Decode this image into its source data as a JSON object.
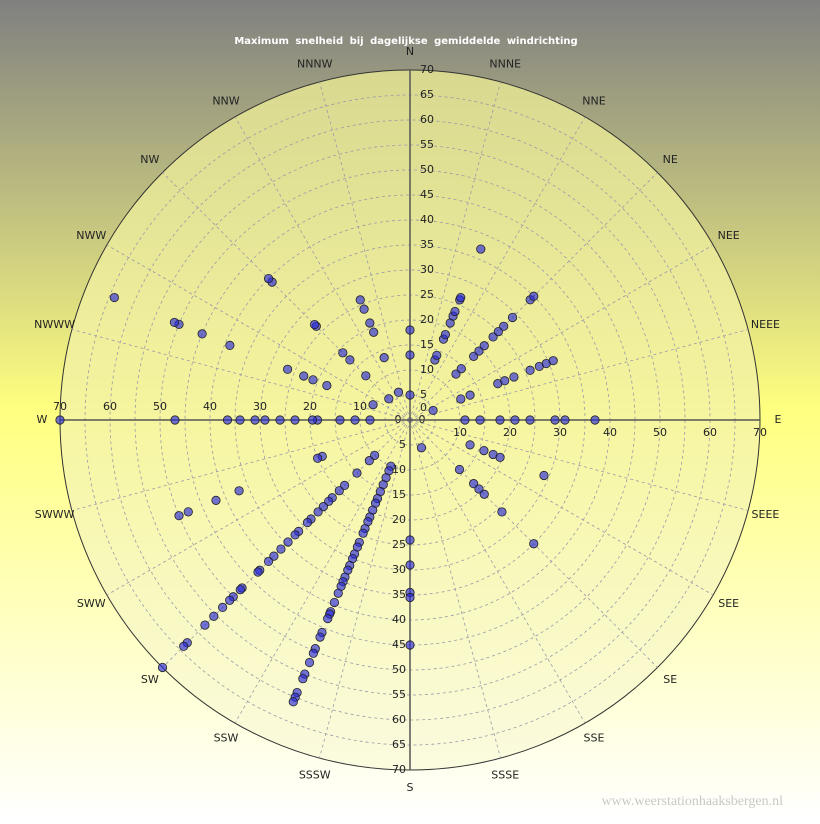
{
  "chart_data": {
    "type": "polar_scatter",
    "title": "Maximum snelheid bij dagelijkse gemiddelde windrichting",
    "watermark": "www.weerstationhaaksbergen.nl",
    "direction_labels": [
      "N",
      "NNNE",
      "NNE",
      "NE",
      "NEE",
      "NEEE",
      "E",
      "SEEE",
      "SEE",
      "SE",
      "SSE",
      "SSSE",
      "S",
      "SSSW",
      "SSW",
      "SW",
      "SWW",
      "SWWW",
      "W",
      "NWWW",
      "NWW",
      "NW",
      "NNW",
      "NNNW"
    ],
    "rlim": [
      0,
      70
    ],
    "rticks": [
      0,
      5,
      10,
      15,
      20,
      25,
      30,
      35,
      40,
      45,
      50,
      55,
      60,
      65,
      70
    ],
    "grid": true,
    "point_color": "#2a2ad8",
    "series": [
      {
        "angle": 0,
        "values": [
          5,
          13,
          18
        ]
      },
      {
        "angle": 22.5,
        "values": [
          13,
          14,
          17.5,
          18.5,
          21,
          22.5,
          23.5,
          26,
          26.5,
          37
        ]
      },
      {
        "angle": 45,
        "values": [
          13,
          14.5,
          18,
          19.5,
          21,
          23.5,
          25,
          26.5,
          29,
          34,
          35
        ]
      },
      {
        "angle": 67.5,
        "values": [
          5,
          11,
          13,
          19,
          20.5,
          22.5,
          26,
          28,
          29.5,
          31
        ]
      },
      {
        "angle": 90,
        "values": [
          11,
          14,
          18,
          21,
          24,
          29,
          31,
          37
        ]
      },
      {
        "angle": 112.5,
        "values": [
          13,
          16,
          18,
          19.5,
          29
        ]
      },
      {
        "angle": 135,
        "values": [
          14,
          18,
          19.5,
          21,
          26,
          35
        ]
      },
      {
        "angle": 157.5,
        "values": [
          6
        ]
      },
      {
        "angle": 180,
        "values": [
          24,
          29,
          34.5,
          35.5,
          45
        ]
      },
      {
        "angle": 202.5,
        "values": [
          10,
          11,
          12.5,
          14,
          15.5,
          17,
          18,
          19.5,
          21,
          22,
          23.5,
          24.5,
          26.5,
          27.5,
          29,
          30,
          31.5,
          32.5,
          34,
          35,
          36,
          37.5,
          39.5,
          41.5,
          42,
          43,
          46,
          47,
          49.5,
          50.5,
          52.5,
          55,
          56,
          59,
          60,
          61
        ]
      },
      {
        "angle": 225,
        "values": [
          10,
          11.5,
          15,
          18.5,
          20,
          22,
          23,
          24.5,
          26,
          28,
          29,
          31.5,
          32.5,
          34.5,
          36.5,
          38.5,
          40,
          42.5,
          43,
          47.5,
          48,
          50,
          51,
          53,
          55.5,
          58,
          63,
          64,
          70
        ]
      },
      {
        "angle": 247.5,
        "values": [
          19,
          20,
          37,
          42,
          48,
          50
        ]
      },
      {
        "angle": 270,
        "values": [
          8,
          11,
          14,
          18.5,
          19.5,
          23,
          26,
          29,
          31,
          34,
          36.5,
          47,
          70
        ]
      },
      {
        "angle": 292.5,
        "values": [
          8,
          18,
          21,
          23,
          26.5,
          39,
          45,
          50,
          51,
          64
        ]
      },
      {
        "angle": 315,
        "values": [
          6,
          12.5,
          17,
          19,
          26.5,
          27,
          39,
          40
        ]
      },
      {
        "angle": 337.5,
        "values": [
          6,
          13.5,
          19,
          21,
          24,
          26
        ]
      }
    ]
  }
}
